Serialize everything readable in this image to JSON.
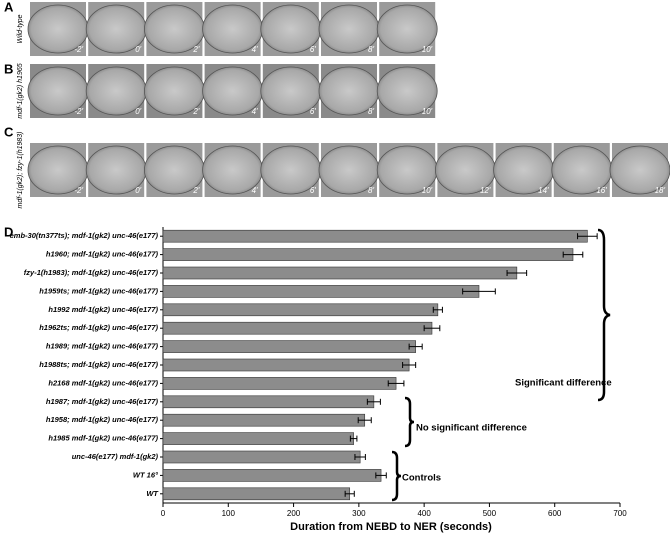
{
  "panels": [
    {
      "letter": "A",
      "label": "Wild-type",
      "frames": [
        "-2'",
        "0'",
        "2'",
        "4'",
        "6'",
        "8'",
        "10'"
      ]
    },
    {
      "letter": "B",
      "label": "mdf-1(gk2) h1965",
      "frames": [
        "-2'",
        "0'",
        "2'",
        "4'",
        "6'",
        "8'",
        "10'"
      ]
    },
    {
      "letter": "C",
      "label": "mdf-1(gk2); fzy-1(h1983)",
      "frames": [
        "-2'",
        "0'",
        "2'",
        "4'",
        "6'",
        "8'",
        "10'",
        "12'",
        "14'",
        "16'",
        "18'"
      ]
    }
  ],
  "chart_data": {
    "type": "bar",
    "panel_label": "D",
    "orientation": "horizontal",
    "xlabel": "Duration from NEBD to NER (seconds)",
    "categories": [
      "emb-30(tn377ts); mdf-1(gk2) unc-46(e177)",
      "h1960; mdf-1(gk2) unc-46(e177)",
      "fzy-1(h1983); mdf-1(gk2) unc-46(e177)",
      "h1959ts; mdf-1(gk2) unc-46(e177)",
      "h1992 mdf-1(gk2) unc-46(e177)",
      "h1962ts; mdf-1(gk2) unc-46(e177)",
      "h1989; mdf-1(gk2) unc-46(e177)",
      "h1988ts; mdf-1(gk2) unc-46(e177)",
      "h2168 mdf-1(gk2) unc-46(e177)",
      "h1987; mdf-1(gk2) unc-46(e177)",
      "h1958; mdf-1(gk2) unc-46(e177)",
      "h1985 mdf-1(gk2) unc-46(e177)",
      "unc-46(e177) mdf-1(gk2)",
      "WT 16°",
      "WT"
    ],
    "values": [
      650,
      628,
      542,
      484,
      421,
      412,
      387,
      377,
      357,
      323,
      309,
      292,
      302,
      334,
      286
    ],
    "errors": [
      15,
      15,
      15,
      25,
      7,
      12,
      10,
      10,
      12,
      10,
      10,
      5,
      8,
      8,
      7
    ],
    "color": "#8c8c8c",
    "xlim": [
      0,
      700
    ],
    "xticks": [
      0,
      100,
      200,
      300,
      400,
      500,
      600,
      700
    ],
    "annotations": [
      "Significant difference",
      "No significant difference",
      "Controls"
    ]
  }
}
